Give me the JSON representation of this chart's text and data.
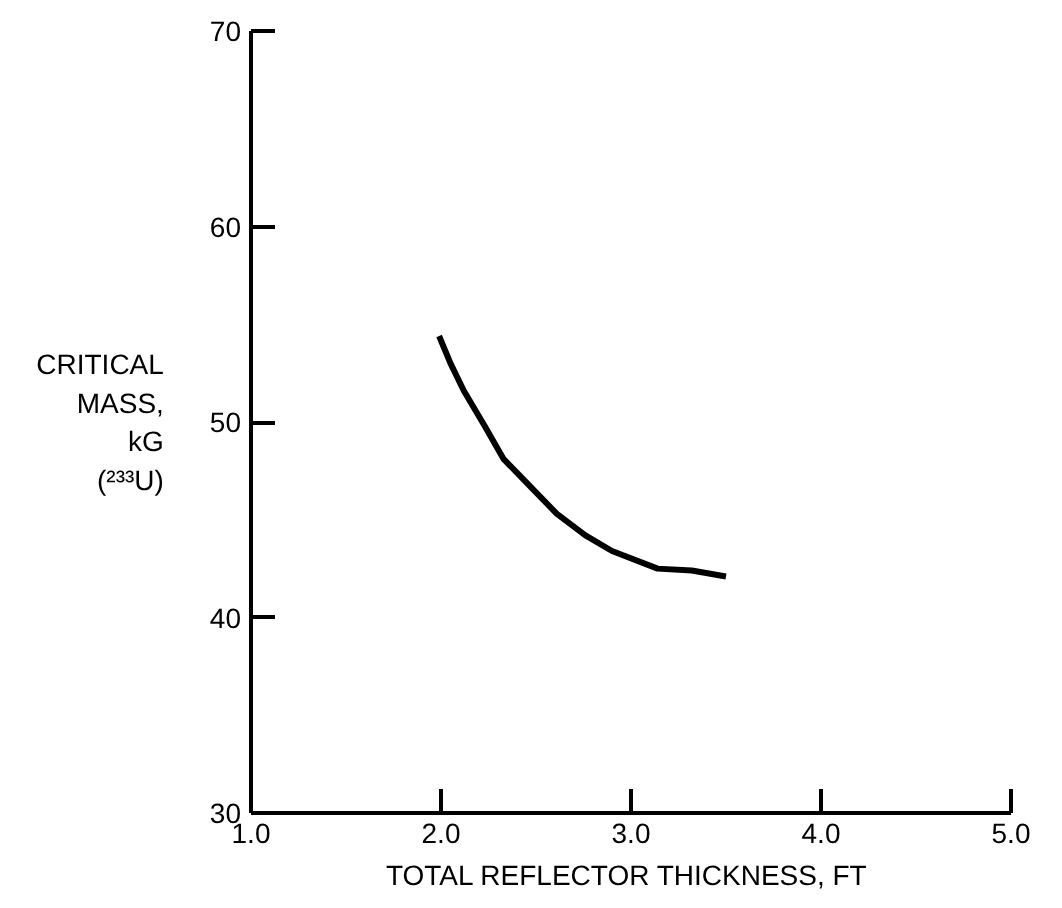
{
  "chart_data": {
    "type": "line",
    "xlabel": "TOTAL REFLECTOR THICKNESS,  FT",
    "ylabel": "CRITICAL\nMASS,\nkG\n(²³³U)",
    "series": [
      {
        "color": "#000000",
        "x": [
          1.99,
          2.05,
          2.12,
          2.23,
          2.33,
          2.44,
          2.61,
          2.76,
          2.9,
          3.14,
          3.32,
          3.5
        ],
        "values": [
          54.4,
          53.0,
          51.6,
          49.8,
          48.1,
          47.0,
          45.3,
          44.2,
          43.4,
          42.5,
          42.4,
          42.1
        ]
      }
    ],
    "xlim": [
      1.0,
      5.0
    ],
    "ylim": [
      30,
      70
    ],
    "xticks": [
      {
        "value": 1.0,
        "label": "1.0"
      },
      {
        "value": 2.0,
        "label": "2.0"
      },
      {
        "value": 3.0,
        "label": "3.0"
      },
      {
        "value": 4.0,
        "label": "4.0"
      },
      {
        "value": 5.0,
        "label": "5.0"
      }
    ],
    "yticks": [
      30,
      40,
      50,
      60,
      70
    ],
    "grid": false,
    "marker": "none",
    "line_style": "solid"
  }
}
